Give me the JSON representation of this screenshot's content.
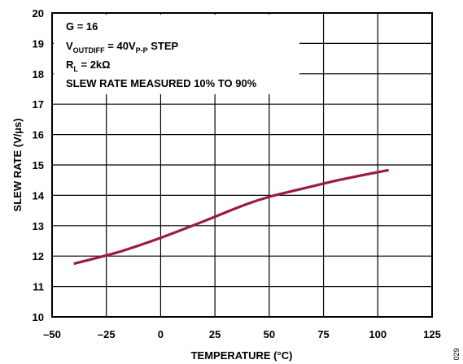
{
  "chart_data": {
    "type": "line",
    "xlabel": "TEMPERATURE (°C)",
    "ylabel": "SLEW RATE (V/µs)",
    "xlim": [
      -50,
      125
    ],
    "ylim": [
      10,
      20
    ],
    "x_ticks": [
      "–50",
      "–25",
      "0",
      "25",
      "50",
      "75",
      "100",
      "125"
    ],
    "y_ticks": [
      "10",
      "11",
      "12",
      "13",
      "14",
      "15",
      "16",
      "17",
      "18",
      "19",
      "20"
    ],
    "grid": true,
    "line_color": "#9b1b42",
    "series": [
      {
        "x": [
          -40,
          -30,
          -20,
          -10,
          0,
          10,
          20,
          30,
          40,
          50,
          60,
          70,
          80,
          90,
          100,
          105
        ],
        "values": [
          11.75,
          11.93,
          12.12,
          12.35,
          12.6,
          12.87,
          13.15,
          13.44,
          13.72,
          13.95,
          14.13,
          14.3,
          14.47,
          14.62,
          14.76,
          14.83
        ]
      }
    ],
    "annotations": {
      "line1": "G = 16",
      "line2_main": "V",
      "line2_sub": "OUTDIFF",
      "line2_mid": " = 40V",
      "line2_sub2": "P-P",
      "line2_end": " STEP",
      "line3_main": "R",
      "line3_sub": "L",
      "line3_end": " = 2kΩ",
      "line4": "SLEW RATE MEASURED 10% TO 90%"
    },
    "figure_id": "029"
  }
}
